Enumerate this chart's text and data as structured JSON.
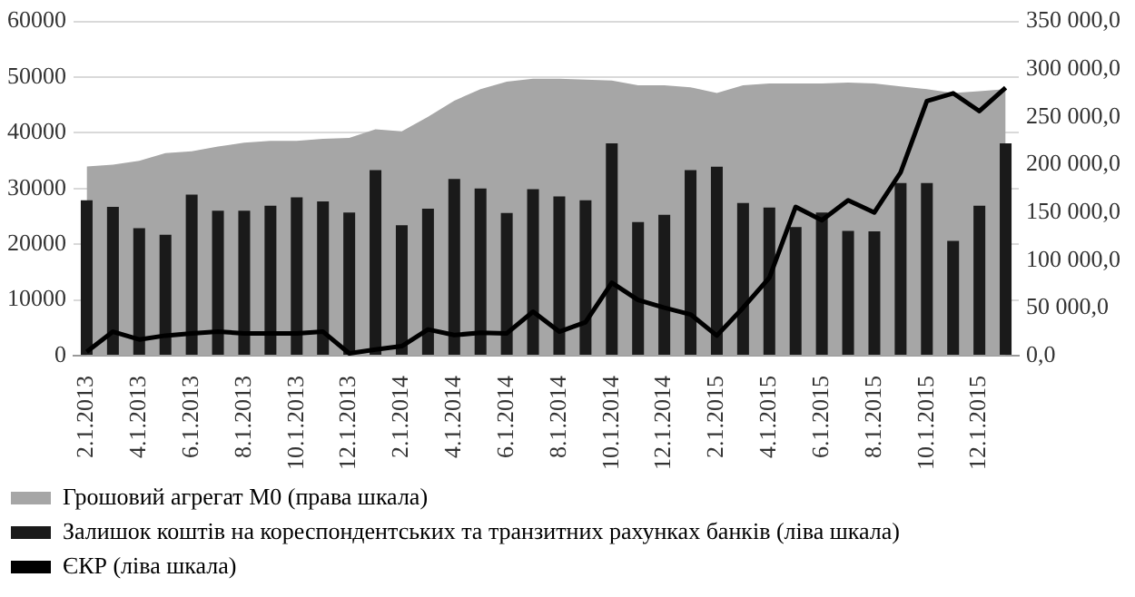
{
  "chart_data": {
    "type": "bar",
    "categories": [
      "2.1.2013",
      null,
      "4.1.2013",
      null,
      "6.1.2013",
      null,
      "8.1.2013",
      null,
      "10.1.2013",
      null,
      "12.1.2013",
      null,
      "2.1.2014",
      null,
      "4.1.2014",
      null,
      "6.1.2014",
      null,
      "8.1.2014",
      null,
      "10.1.2014",
      null,
      "12.1.2014",
      null,
      "2.1.2015",
      null,
      "4.1.2015",
      null,
      "6.1.2015",
      null,
      "8.1.2015",
      null,
      "10.1.2015",
      null,
      "12.1.2015",
      null
    ],
    "series": [
      {
        "name": "Грошовий агрегат M0 (права шкала)",
        "type": "area",
        "axis": "y2",
        "color": "#a6a6a6",
        "values": [
          198000,
          200000,
          204000,
          212000,
          214000,
          219000,
          223000,
          225000,
          225000,
          227000,
          228000,
          237000,
          235000,
          250000,
          267000,
          279000,
          287000,
          290000,
          290000,
          289000,
          288000,
          283000,
          283000,
          281000,
          275000,
          283000,
          285000,
          285000,
          285000,
          286000,
          285000,
          282000,
          279000,
          275000,
          277000,
          279000
        ]
      },
      {
        "name": "Залишок коштів на кореспондентських та транзитних рахунках банків (ліва шкала)",
        "axis": "y",
        "color": "#1a1a1a",
        "values": [
          27900,
          26700,
          22900,
          21700,
          28900,
          26000,
          26000,
          26900,
          28400,
          27700,
          25700,
          33300,
          23400,
          26400,
          31700,
          30000,
          25600,
          29900,
          28600,
          27900,
          38100,
          24000,
          25300,
          33300,
          33900,
          27400,
          26600,
          23100,
          25700,
          22400,
          22300,
          31000,
          31000,
          20600,
          26900,
          38100
        ]
      },
      {
        "name": "ЄКР (ліва шкала)",
        "type": "line",
        "axis": "y",
        "color": "#000000",
        "values": [
          700,
          4300,
          2900,
          3600,
          4000,
          4300,
          4000,
          4000,
          4000,
          4300,
          400,
          1100,
          1700,
          4700,
          3700,
          4100,
          4000,
          7900,
          4300,
          6000,
          13100,
          10000,
          8600,
          7400,
          3600,
          8600,
          14000,
          26700,
          24300,
          27900,
          25700,
          32900,
          45700,
          47100,
          43900,
          48100
        ]
      }
    ],
    "ylim": [
      0,
      60000
    ],
    "yticks": [
      0,
      10000,
      20000,
      30000,
      40000,
      50000,
      60000
    ],
    "y2lim": [
      0,
      350000
    ],
    "y2ticks": [
      {
        "value": 0,
        "label": "0,0"
      },
      {
        "value": 50000,
        "label": "50 000,0"
      },
      {
        "value": 100000,
        "label": "100 000,0"
      },
      {
        "value": 150000,
        "label": "150 000,0"
      },
      {
        "value": 200000,
        "label": "200 000,0"
      },
      {
        "value": 250000,
        "label": "250 000,0"
      },
      {
        "value": 300000,
        "label": "300 000,0"
      },
      {
        "value": 350000,
        "label": "350 000,0"
      }
    ],
    "grid": "y",
    "legend": "bottom",
    "marker": "none",
    "line_style": "solid"
  }
}
